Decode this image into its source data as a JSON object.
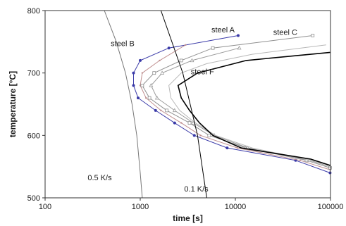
{
  "chart_data": {
    "type": "line",
    "title": "",
    "xlabel": "time [s]",
    "ylabel": "temperature [°C]",
    "x_scale": "log",
    "xlim": [
      100,
      100000
    ],
    "ylim": [
      500,
      800
    ],
    "x_ticks": [
      100,
      1000,
      10000,
      100000
    ],
    "x_tick_labels": [
      "100",
      "1000",
      "10000",
      "100000"
    ],
    "y_ticks": [
      500,
      600,
      700,
      800
    ],
    "y_tick_labels": [
      "500",
      "600",
      "700",
      "800"
    ],
    "grid": false,
    "legend": "none",
    "series": [
      {
        "name": "steel B",
        "color": "#3a3aa8",
        "marker": "filled-circle",
        "points": [
          [
            10700,
            760
          ],
          [
            2000,
            740
          ],
          [
            1000,
            720
          ],
          [
            850,
            700
          ],
          [
            850,
            680
          ],
          [
            950,
            660
          ],
          [
            1450,
            640
          ],
          [
            2300,
            620
          ],
          [
            3700,
            600
          ],
          [
            8200,
            580
          ],
          [
            43000,
            560
          ],
          [
            99000,
            540
          ]
        ]
      },
      {
        "name": "steel A",
        "color": "#c09090",
        "marker": "dot",
        "points": [
          [
            3000,
            745
          ],
          [
            1600,
            720
          ],
          [
            1050,
            700
          ],
          [
            1000,
            680
          ],
          [
            1150,
            660
          ],
          [
            1650,
            640
          ],
          [
            2700,
            620
          ],
          [
            4300,
            600
          ],
          [
            10500,
            580
          ],
          [
            48000,
            560
          ],
          [
            99000,
            545
          ]
        ]
      },
      {
        "name": "steel C",
        "color": "#909090",
        "marker": "open-square",
        "points": [
          [
            65000,
            760
          ],
          [
            5800,
            740
          ],
          [
            2700,
            720
          ],
          [
            1400,
            700
          ],
          [
            1050,
            680
          ],
          [
            1250,
            660
          ],
          [
            1900,
            640
          ],
          [
            3300,
            620
          ],
          [
            5300,
            600
          ],
          [
            13000,
            580
          ],
          [
            56000,
            560
          ],
          [
            99000,
            548
          ]
        ]
      },
      {
        "name": "",
        "color": "#9a9a9a",
        "marker": "open-triangle",
        "points": [
          [
            11000,
            740
          ],
          [
            3500,
            720
          ],
          [
            1700,
            700
          ],
          [
            1300,
            680
          ],
          [
            1500,
            660
          ],
          [
            2300,
            640
          ],
          [
            3600,
            620
          ],
          [
            6000,
            600
          ],
          [
            13500,
            580
          ],
          [
            60000,
            560
          ],
          [
            99000,
            550
          ]
        ]
      },
      {
        "name": "",
        "color": "#b8b8b8",
        "marker": "none",
        "points": [
          [
            90000,
            745
          ],
          [
            15000,
            730
          ],
          [
            5000,
            715
          ],
          [
            2700,
            700
          ],
          [
            2000,
            680
          ],
          [
            2100,
            660
          ],
          [
            2600,
            640
          ],
          [
            3800,
            620
          ],
          [
            6200,
            600
          ],
          [
            15000,
            580
          ],
          [
            62000,
            560
          ],
          [
            99000,
            552
          ]
        ]
      },
      {
        "name": "steel F",
        "color": "#000000",
        "marker": "none",
        "points": [
          [
            99000,
            733
          ],
          [
            13000,
            720
          ],
          [
            4000,
            700
          ],
          [
            2500,
            680
          ],
          [
            2700,
            660
          ],
          [
            3300,
            640
          ],
          [
            4200,
            620
          ],
          [
            5800,
            600
          ],
          [
            11500,
            580
          ],
          [
            62000,
            562
          ],
          [
            99000,
            552
          ]
        ]
      }
    ],
    "reference_lines": [
      {
        "name": "0.5 K/s",
        "color": "#777777",
        "points": [
          [
            420,
            800
          ],
          [
            560,
            750
          ],
          [
            700,
            700
          ],
          [
            820,
            650
          ],
          [
            920,
            600
          ],
          [
            1000,
            540
          ],
          [
            1050,
            500
          ]
        ]
      },
      {
        "name": "0.1 K/s",
        "color": "#000000",
        "points": [
          [
            1650,
            800
          ],
          [
            2800,
            700
          ],
          [
            4000,
            600
          ],
          [
            5000,
            500
          ]
        ]
      }
    ],
    "annotations": [
      {
        "text": "steel A",
        "x": 5600,
        "y": 765
      },
      {
        "text": "steel B",
        "x": 490,
        "y": 743
      },
      {
        "text": "steel C",
        "x": 25000,
        "y": 761
      },
      {
        "text": "steel F",
        "x": 3400,
        "y": 698
      },
      {
        "text": "0.5 K/s",
        "x": 280,
        "y": 528
      },
      {
        "text": "0.1 K/s",
        "x": 2900,
        "y": 510
      }
    ]
  }
}
